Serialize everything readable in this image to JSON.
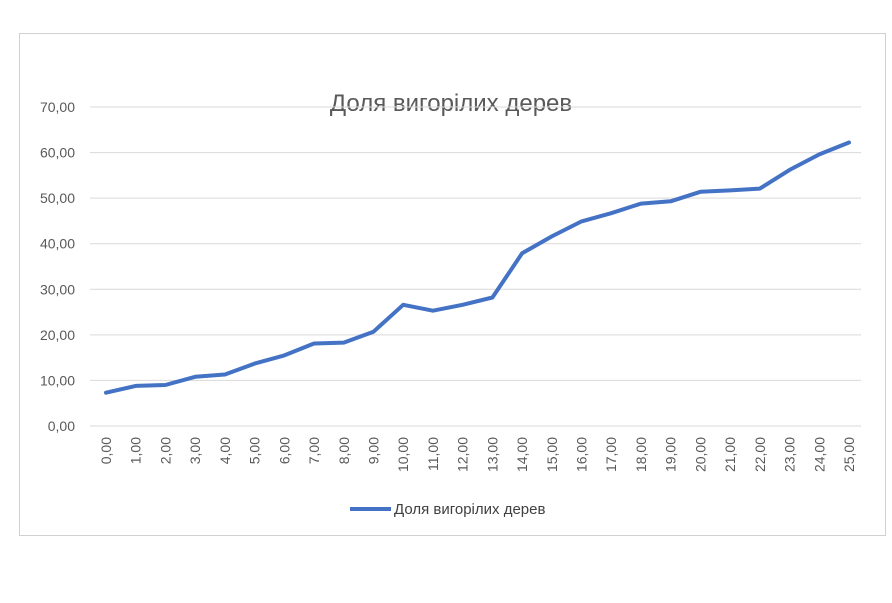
{
  "chart_data": {
    "type": "line",
    "title": "Доля вигорілих дерев",
    "xlabel": "",
    "ylabel": "",
    "categories": [
      "0,00",
      "1,00",
      "2,00",
      "3,00",
      "4,00",
      "5,00",
      "6,00",
      "7,00",
      "8,00",
      "9,00",
      "10,00",
      "11,00",
      "12,00",
      "13,00",
      "14,00",
      "15,00",
      "16,00",
      "17,00",
      "18,00",
      "19,00",
      "20,00",
      "21,00",
      "22,00",
      "23,00",
      "24,00",
      "25,00"
    ],
    "y_ticks": [
      "0,00",
      "10,00",
      "20,00",
      "30,00",
      "40,00",
      "50,00",
      "60,00",
      "70,00"
    ],
    "ylim": [
      0,
      70
    ],
    "grid": true,
    "legend_position": "bottom",
    "series": [
      {
        "name": "Доля вигорілих дерев",
        "color": "#4472c4",
        "values": [
          7.3,
          8.8,
          9.0,
          10.8,
          11.3,
          13.7,
          15.5,
          18.1,
          18.3,
          20.7,
          26.6,
          25.3,
          26.6,
          28.2,
          37.9,
          41.6,
          44.9,
          46.7,
          48.8,
          49.3,
          51.4,
          51.7,
          52.1,
          56.2,
          59.6,
          62.2
        ]
      }
    ]
  }
}
